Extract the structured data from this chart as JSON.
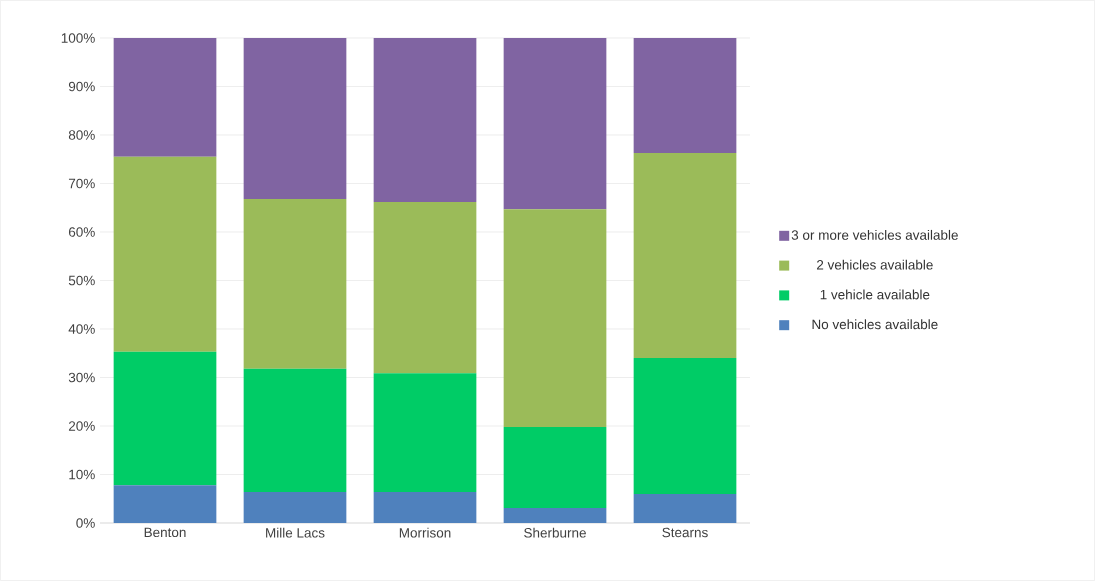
{
  "chart_data": {
    "type": "bar",
    "stacked": true,
    "categories": [
      "Benton",
      "Mille Lacs",
      "Morrison",
      "Sherburne",
      "Stearns"
    ],
    "series": [
      {
        "name": "No vehicles available",
        "color": "#4f81bd",
        "values": [
          7.8,
          6.4,
          6.4,
          3.1,
          6.0
        ]
      },
      {
        "name": "1 vehicle available",
        "color": "#00cc66",
        "values": [
          27.5,
          25.4,
          24.5,
          16.7,
          28.0
        ]
      },
      {
        "name": "2 vehicles available",
        "color": "#9bbb59",
        "values": [
          40.2,
          35.0,
          35.3,
          44.9,
          42.3
        ]
      },
      {
        "name": "3 or more vehicles available",
        "color": "#8064a2",
        "values": [
          24.5,
          33.2,
          33.8,
          35.3,
          23.7
        ]
      }
    ],
    "ylim": [
      0,
      100
    ],
    "yticks": [
      {
        "value": 0,
        "label": "0%"
      },
      {
        "value": 10,
        "label": "10%"
      },
      {
        "value": 20,
        "label": "20%"
      },
      {
        "value": 30,
        "label": "30%"
      },
      {
        "value": 40,
        "label": "40%"
      },
      {
        "value": 50,
        "label": "50%"
      },
      {
        "value": 60,
        "label": "60%"
      },
      {
        "value": 70,
        "label": "70%"
      },
      {
        "value": 80,
        "label": "80%"
      },
      {
        "value": 90,
        "label": "90%"
      },
      {
        "value": 100,
        "label": "100%"
      }
    ],
    "grid": "y",
    "legend": "right"
  }
}
